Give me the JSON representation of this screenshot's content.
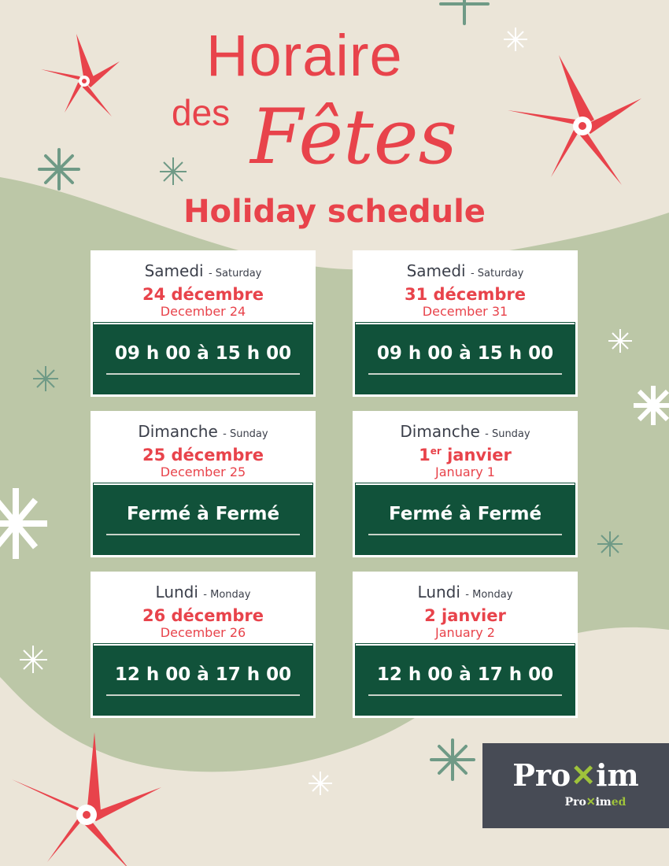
{
  "header": {
    "title_line1": "Horaire",
    "title_des": "des",
    "title_fetes": "Fêtes",
    "subtitle": "Holiday schedule"
  },
  "colors": {
    "red": "#e8434b",
    "green_box": "#11523a",
    "background": "#ebe5d8",
    "green_blob": "#bcc7a7"
  },
  "cards": [
    {
      "day_fr": "Samedi",
      "day_en": "- Saturday",
      "date_fr": "24 décembre",
      "date_sup": "",
      "date_fr_rest": "",
      "date_en": "December 24",
      "hours": "09 h 00 à 15 h 00"
    },
    {
      "day_fr": "Samedi",
      "day_en": "- Saturday",
      "date_fr": "31 décembre",
      "date_sup": "",
      "date_fr_rest": "",
      "date_en": "December 31",
      "hours": "09 h 00 à 15 h 00"
    },
    {
      "day_fr": "Dimanche",
      "day_en": "- Sunday",
      "date_fr": "25 décembre",
      "date_sup": "",
      "date_fr_rest": "",
      "date_en": "December 25",
      "hours": "Fermé à Fermé"
    },
    {
      "day_fr": "Dimanche",
      "day_en": "- Sunday",
      "date_fr": "1",
      "date_sup": "er",
      "date_fr_rest": " janvier",
      "date_en": "January 1",
      "hours": "Fermé à Fermé"
    },
    {
      "day_fr": "Lundi",
      "day_en": "- Monday",
      "date_fr": "26 décembre",
      "date_sup": "",
      "date_fr_rest": "",
      "date_en": "December 26",
      "hours": "12 h 00 à 17 h 00"
    },
    {
      "day_fr": "Lundi",
      "day_en": "- Monday",
      "date_fr": "2 janvier",
      "date_sup": "",
      "date_fr_rest": "",
      "date_en": "January 2",
      "hours": "12 h 00 à 17 h 00"
    }
  ],
  "logo": {
    "brand_a": "Pro",
    "brand_b": "im",
    "sub_a": "Pro",
    "sub_b": "im",
    "sub_c": "ed"
  }
}
